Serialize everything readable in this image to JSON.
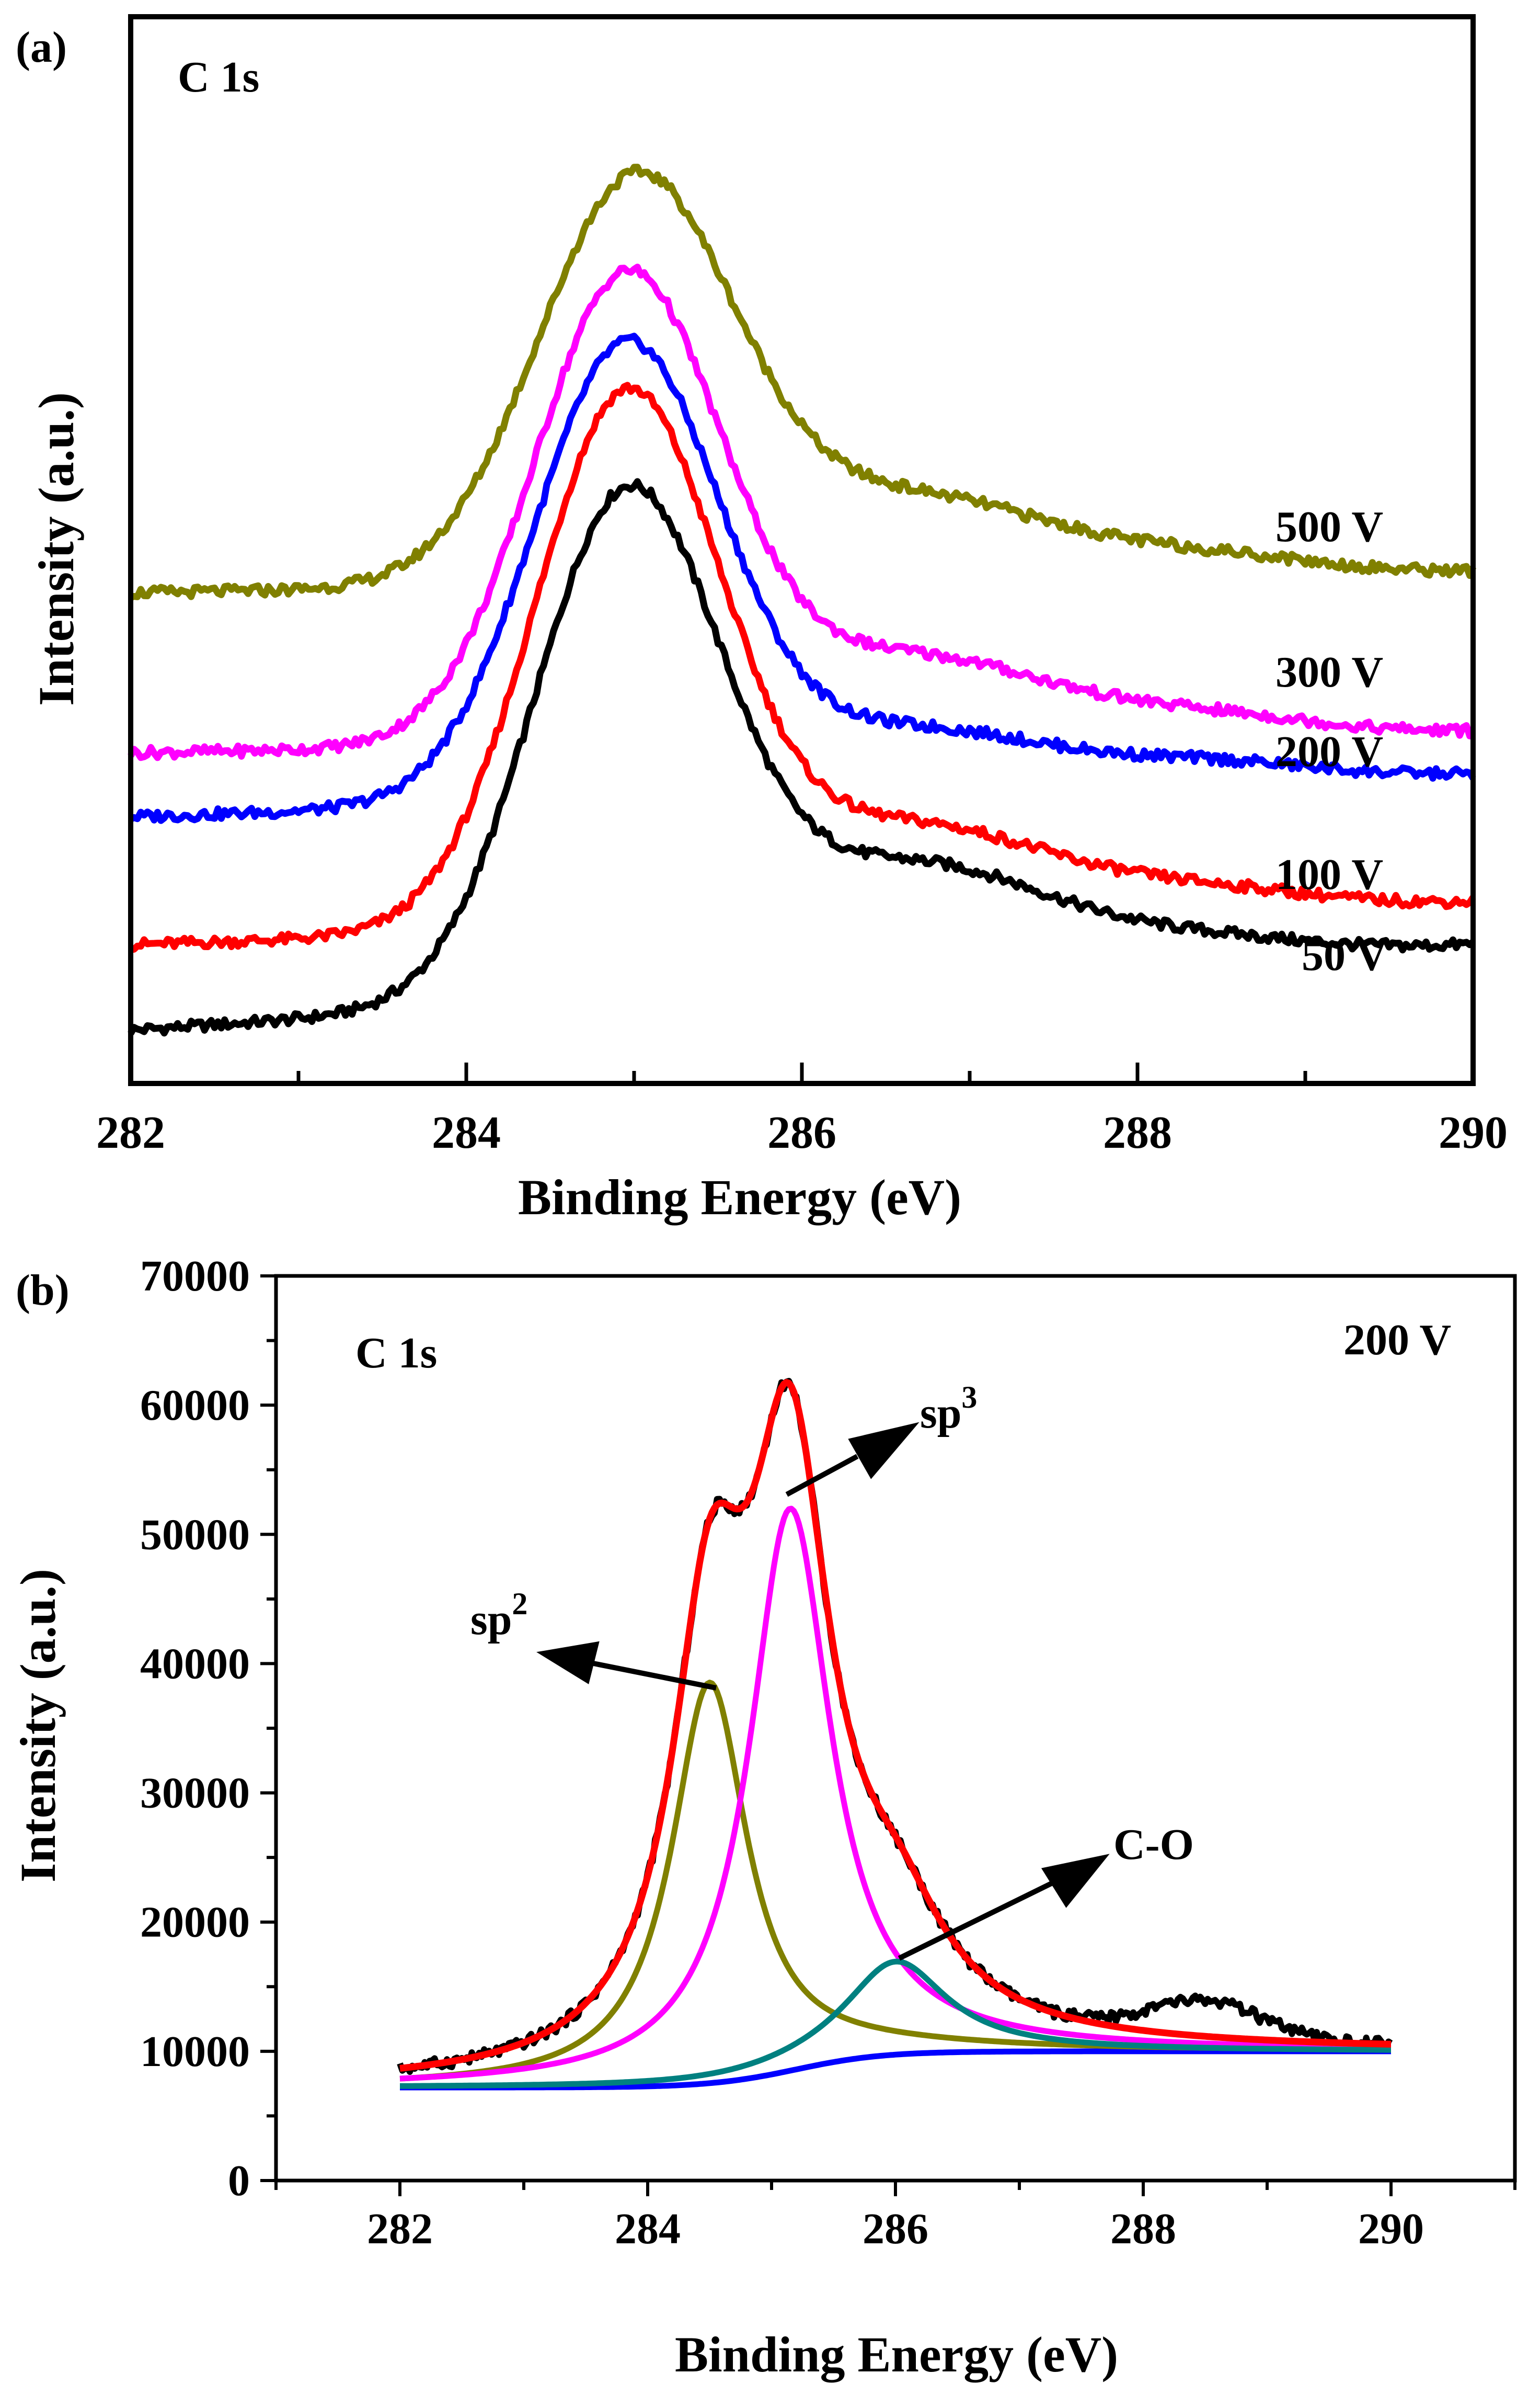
{
  "chart_data": [
    {
      "panel_label": "(a)",
      "type": "line",
      "title": "C 1s",
      "xlabel": "Binding Energy (eV)",
      "ylabel": "Intensity (a.u.)",
      "xlim": [
        282,
        290
      ],
      "ylim": [
        0,
        100
      ],
      "xticks": [
        282,
        284,
        286,
        288,
        290
      ],
      "x_minor_step": 1,
      "y_ticks_shown": false,
      "grid": false,
      "series": [
        {
          "name": "50 V",
          "label": "50 V",
          "color": "#000000",
          "baseline": 5,
          "peak_center": 284.95,
          "peak_height": 46,
          "peak_width": 0.55,
          "tail_height": 11,
          "tail_center": 286.6,
          "tail_width": 0.9,
          "right_level": 13,
          "satellite": 1.5
        },
        {
          "name": "100 V",
          "label": "100 V",
          "color": "#ff0000",
          "baseline": 13,
          "peak_center": 284.95,
          "peak_height": 49,
          "peak_width": 0.55,
          "tail_height": 9,
          "tail_center": 286.6,
          "tail_width": 0.9,
          "right_level": 17,
          "satellite": 1.5
        },
        {
          "name": "200 V",
          "label": "200 V",
          "color": "#0000ff",
          "baseline": 25,
          "peak_center": 284.95,
          "peak_height": 42,
          "peak_width": 0.55,
          "tail_height": 6,
          "tail_center": 286.6,
          "tail_width": 0.9,
          "right_level": 29,
          "satellite": 1.5
        },
        {
          "name": "300 V",
          "label": "300 V",
          "color": "#ff00ff",
          "baseline": 31,
          "peak_center": 284.95,
          "peak_height": 43,
          "peak_width": 0.55,
          "tail_height": 8,
          "tail_center": 286.6,
          "tail_width": 0.9,
          "right_level": 33,
          "satellite": 1.5
        },
        {
          "name": "500 V",
          "label": "500 V",
          "color": "#808000",
          "baseline": 46,
          "peak_center": 285.0,
          "peak_height": 37,
          "peak_width": 0.58,
          "tail_height": 8,
          "tail_center": 286.6,
          "tail_width": 0.9,
          "right_level": 48,
          "satellite": 1.5
        }
      ]
    },
    {
      "panel_label": "(b)",
      "type": "line",
      "title": "C 1s",
      "annotation": "200 V",
      "xlabel": "Binding Energy (eV)",
      "ylabel": "Intensity (a.u.)",
      "xlim": [
        281,
        291
      ],
      "ylim": [
        0,
        70000
      ],
      "xticks": [
        282,
        284,
        286,
        288,
        290
      ],
      "yticks": [
        0,
        10000,
        20000,
        30000,
        40000,
        50000,
        60000,
        70000
      ],
      "x_minor_step": 1,
      "y_minor_step": 5000,
      "grid": false,
      "background": {
        "name": "background",
        "color": "#0000ff",
        "start": 7200,
        "end": 10000,
        "center": 285.2,
        "width": 0.35
      },
      "components": [
        {
          "name": "sp2",
          "label": "sp2",
          "color": "#808000",
          "center": 284.5,
          "amplitude": 31000,
          "fwhm": 0.75
        },
        {
          "name": "sp3",
          "label": "sp3",
          "color": "#ff00ff",
          "center": 285.15,
          "amplitude": 43500,
          "fwhm": 0.8
        },
        {
          "name": "C-O",
          "label": "C-O",
          "color": "#008080",
          "center": 286.0,
          "amplitude": 7200,
          "fwhm": 1.0
        }
      ],
      "envelope": {
        "name": "fit envelope",
        "color": "#ff0000"
      },
      "raw": {
        "name": "experimental data",
        "color": "#000000",
        "satellite_center": 288.5,
        "satellite_height": 2800
      }
    }
  ]
}
